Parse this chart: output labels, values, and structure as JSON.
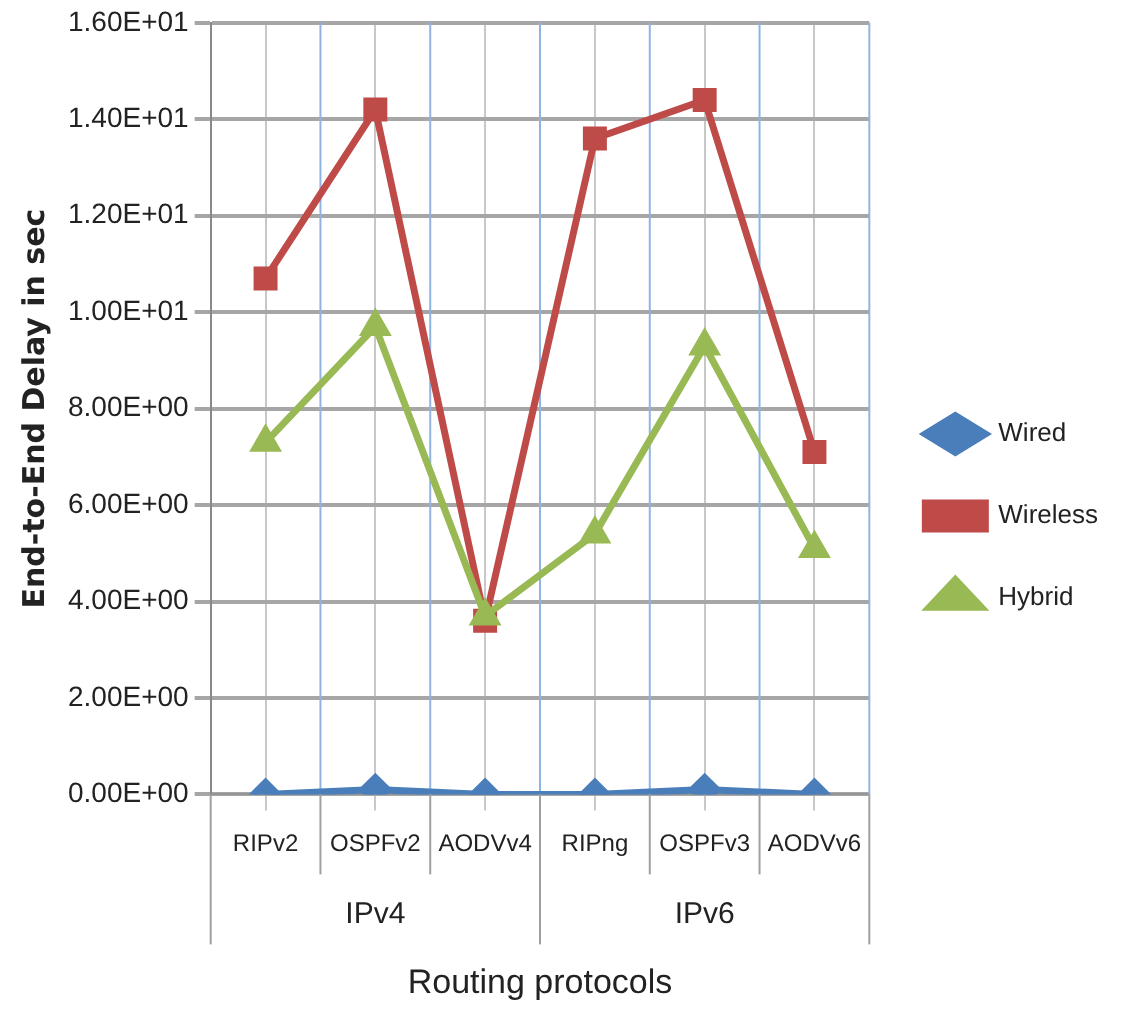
{
  "chart_data": {
    "type": "line",
    "xlabel": "Routing protocols",
    "ylabel": "End-to-End Delay in sec",
    "categories": [
      "RIPv2",
      "OSPFv2",
      "AODVv4",
      "RIPng",
      "OSPFv3",
      "AODVv6"
    ],
    "annotations": [
      "IPv4",
      "IPv6"
    ],
    "series": [
      {
        "name": "Wired",
        "color": "#4a7ebb",
        "marker": "diamond",
        "values": [
          0,
          0.1,
          0,
          0,
          0.1,
          0
        ]
      },
      {
        "name": "Wireless",
        "color": "#be4b48",
        "marker": "square",
        "values": [
          10.7,
          14.2,
          3.6,
          13.6,
          14.4,
          7.1
        ]
      },
      {
        "name": "Hybrid",
        "color": "#98b954",
        "marker": "triangle",
        "values": [
          7.3,
          9.7,
          3.7,
          5.4,
          9.3,
          5.1
        ]
      }
    ],
    "ylim": [
      0,
      16
    ],
    "yticks": [
      {
        "value": 0,
        "label": "0.00E+00"
      },
      {
        "value": 2,
        "label": "2.00E+00"
      },
      {
        "value": 4,
        "label": "4.00E+00"
      },
      {
        "value": 6,
        "label": "6.00E+00"
      },
      {
        "value": 8,
        "label": "8.00E+00"
      },
      {
        "value": 10,
        "label": "1.00E+01"
      },
      {
        "value": 12,
        "label": "1.20E+01"
      },
      {
        "value": 14,
        "label": "1.40E+01"
      },
      {
        "value": 16,
        "label": "1.60E+01"
      }
    ],
    "grid": true,
    "legend": "right"
  }
}
